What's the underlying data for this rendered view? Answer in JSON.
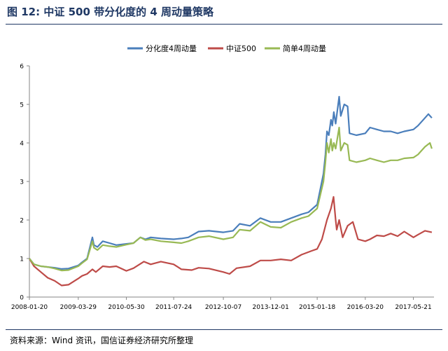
{
  "figure": {
    "label": "图 12:",
    "title": "中证 500 带分化度的 4 周动量策略",
    "source": "资料来源：Wind 资讯，国信证券经济研究所整理"
  },
  "chart_data": {
    "type": "line",
    "x_ticks": [
      "2008-01-20",
      "2009-03-29",
      "2010-05-30",
      "2011-07-24",
      "2012-10-07",
      "2013-12-01",
      "2015-01-18",
      "2016-03-20",
      "2017-05-21"
    ],
    "ylim": [
      0,
      6
    ],
    "y_ticks": [
      0,
      1,
      2,
      3,
      4,
      5,
      6
    ],
    "legend_position": "top",
    "grid": false,
    "series": [
      {
        "name": "分化度4周动量",
        "color": "#4a7ebb",
        "points": [
          [
            "2008-01-20",
            1.0
          ],
          [
            "2008-03-01",
            0.85
          ],
          [
            "2008-05-01",
            0.8
          ],
          [
            "2008-07-01",
            0.78
          ],
          [
            "2008-09-01",
            0.76
          ],
          [
            "2008-11-01",
            0.73
          ],
          [
            "2009-01-01",
            0.74
          ],
          [
            "2009-03-29",
            0.82
          ],
          [
            "2009-05-01",
            0.9
          ],
          [
            "2009-06-15",
            1.0
          ],
          [
            "2009-08-01",
            1.55
          ],
          [
            "2009-08-15",
            1.35
          ],
          [
            "2009-09-15",
            1.3
          ],
          [
            "2009-11-01",
            1.45
          ],
          [
            "2010-01-01",
            1.4
          ],
          [
            "2010-03-01",
            1.35
          ],
          [
            "2010-05-30",
            1.38
          ],
          [
            "2010-08-01",
            1.4
          ],
          [
            "2010-10-01",
            1.55
          ],
          [
            "2010-11-15",
            1.5
          ],
          [
            "2011-01-01",
            1.55
          ],
          [
            "2011-04-01",
            1.52
          ],
          [
            "2011-07-24",
            1.5
          ],
          [
            "2011-10-01",
            1.52
          ],
          [
            "2011-12-01",
            1.55
          ],
          [
            "2012-03-01",
            1.7
          ],
          [
            "2012-06-01",
            1.72
          ],
          [
            "2012-10-07",
            1.68
          ],
          [
            "2013-01-01",
            1.72
          ],
          [
            "2013-03-01",
            1.9
          ],
          [
            "2013-06-01",
            1.85
          ],
          [
            "2013-09-01",
            2.05
          ],
          [
            "2013-12-01",
            1.95
          ],
          [
            "2014-03-01",
            1.95
          ],
          [
            "2014-06-01",
            2.05
          ],
          [
            "2014-09-01",
            2.15
          ],
          [
            "2014-11-01",
            2.2
          ],
          [
            "2015-01-18",
            2.4
          ],
          [
            "2015-02-15",
            2.8
          ],
          [
            "2015-03-15",
            3.2
          ],
          [
            "2015-04-01",
            3.7
          ],
          [
            "2015-04-15",
            4.3
          ],
          [
            "2015-05-01",
            4.2
          ],
          [
            "2015-05-20",
            4.6
          ],
          [
            "2015-06-01",
            4.45
          ],
          [
            "2015-06-15",
            4.8
          ],
          [
            "2015-07-01",
            4.5
          ],
          [
            "2015-08-01",
            5.2
          ],
          [
            "2015-08-15",
            4.7
          ],
          [
            "2015-09-15",
            5.0
          ],
          [
            "2015-10-15",
            4.95
          ],
          [
            "2015-11-01",
            4.25
          ],
          [
            "2016-01-01",
            4.2
          ],
          [
            "2016-03-20",
            4.25
          ],
          [
            "2016-05-01",
            4.4
          ],
          [
            "2016-07-01",
            4.35
          ],
          [
            "2016-09-01",
            4.3
          ],
          [
            "2016-11-01",
            4.3
          ],
          [
            "2017-01-01",
            4.25
          ],
          [
            "2017-03-01",
            4.3
          ],
          [
            "2017-05-21",
            4.35
          ],
          [
            "2017-07-01",
            4.45
          ],
          [
            "2017-09-01",
            4.65
          ],
          [
            "2017-10-01",
            4.75
          ],
          [
            "2017-11-01",
            4.65
          ]
        ]
      },
      {
        "name": "中证500",
        "color": "#be4b48",
        "points": [
          [
            "2008-01-20",
            1.0
          ],
          [
            "2008-03-01",
            0.8
          ],
          [
            "2008-05-01",
            0.65
          ],
          [
            "2008-07-01",
            0.5
          ],
          [
            "2008-09-01",
            0.42
          ],
          [
            "2008-11-01",
            0.3
          ],
          [
            "2009-01-01",
            0.32
          ],
          [
            "2009-03-29",
            0.48
          ],
          [
            "2009-05-01",
            0.55
          ],
          [
            "2009-06-15",
            0.6
          ],
          [
            "2009-08-01",
            0.72
          ],
          [
            "2009-09-01",
            0.65
          ],
          [
            "2009-11-01",
            0.8
          ],
          [
            "2010-01-01",
            0.78
          ],
          [
            "2010-03-01",
            0.8
          ],
          [
            "2010-05-30",
            0.68
          ],
          [
            "2010-08-01",
            0.75
          ],
          [
            "2010-11-01",
            0.92
          ],
          [
            "2011-01-01",
            0.85
          ],
          [
            "2011-04-01",
            0.92
          ],
          [
            "2011-07-24",
            0.85
          ],
          [
            "2011-10-01",
            0.72
          ],
          [
            "2012-01-01",
            0.7
          ],
          [
            "2012-03-01",
            0.76
          ],
          [
            "2012-06-01",
            0.74
          ],
          [
            "2012-10-07",
            0.65
          ],
          [
            "2012-12-01",
            0.6
          ],
          [
            "2013-02-01",
            0.75
          ],
          [
            "2013-06-01",
            0.8
          ],
          [
            "2013-09-01",
            0.95
          ],
          [
            "2013-12-01",
            0.95
          ],
          [
            "2014-03-01",
            0.98
          ],
          [
            "2014-06-01",
            0.95
          ],
          [
            "2014-09-01",
            1.1
          ],
          [
            "2014-12-01",
            1.2
          ],
          [
            "2015-01-18",
            1.25
          ],
          [
            "2015-03-01",
            1.5
          ],
          [
            "2015-04-15",
            2.0
          ],
          [
            "2015-05-20",
            2.3
          ],
          [
            "2015-06-12",
            2.6
          ],
          [
            "2015-07-01",
            2.0
          ],
          [
            "2015-07-10",
            1.75
          ],
          [
            "2015-08-01",
            2.0
          ],
          [
            "2015-09-01",
            1.55
          ],
          [
            "2015-10-15",
            1.85
          ],
          [
            "2015-12-01",
            1.95
          ],
          [
            "2016-01-15",
            1.5
          ],
          [
            "2016-03-20",
            1.45
          ],
          [
            "2016-05-01",
            1.5
          ],
          [
            "2016-07-01",
            1.6
          ],
          [
            "2016-09-01",
            1.58
          ],
          [
            "2016-11-01",
            1.65
          ],
          [
            "2017-01-01",
            1.58
          ],
          [
            "2017-03-01",
            1.7
          ],
          [
            "2017-05-21",
            1.55
          ],
          [
            "2017-07-01",
            1.62
          ],
          [
            "2017-09-01",
            1.72
          ],
          [
            "2017-11-01",
            1.68
          ]
        ]
      },
      {
        "name": "简单4周动量",
        "color": "#98b954",
        "points": [
          [
            "2008-01-20",
            1.0
          ],
          [
            "2008-03-01",
            0.85
          ],
          [
            "2008-05-01",
            0.8
          ],
          [
            "2008-07-01",
            0.78
          ],
          [
            "2008-09-01",
            0.74
          ],
          [
            "2008-11-01",
            0.69
          ],
          [
            "2009-01-01",
            0.7
          ],
          [
            "2009-03-29",
            0.8
          ],
          [
            "2009-05-01",
            0.88
          ],
          [
            "2009-06-15",
            0.98
          ],
          [
            "2009-08-01",
            1.45
          ],
          [
            "2009-08-15",
            1.28
          ],
          [
            "2009-09-15",
            1.22
          ],
          [
            "2009-11-01",
            1.35
          ],
          [
            "2010-01-01",
            1.32
          ],
          [
            "2010-03-01",
            1.3
          ],
          [
            "2010-05-30",
            1.36
          ],
          [
            "2010-08-01",
            1.4
          ],
          [
            "2010-10-01",
            1.55
          ],
          [
            "2010-11-15",
            1.48
          ],
          [
            "2011-01-01",
            1.5
          ],
          [
            "2011-04-01",
            1.45
          ],
          [
            "2011-07-24",
            1.42
          ],
          [
            "2011-10-01",
            1.4
          ],
          [
            "2011-12-01",
            1.45
          ],
          [
            "2012-03-01",
            1.55
          ],
          [
            "2012-06-01",
            1.58
          ],
          [
            "2012-10-07",
            1.5
          ],
          [
            "2013-01-01",
            1.55
          ],
          [
            "2013-03-01",
            1.75
          ],
          [
            "2013-06-01",
            1.72
          ],
          [
            "2013-09-01",
            1.95
          ],
          [
            "2013-12-01",
            1.82
          ],
          [
            "2014-03-01",
            1.8
          ],
          [
            "2014-06-01",
            1.95
          ],
          [
            "2014-09-01",
            2.05
          ],
          [
            "2014-11-01",
            2.1
          ],
          [
            "2015-01-18",
            2.3
          ],
          [
            "2015-02-15",
            2.65
          ],
          [
            "2015-03-15",
            3.0
          ],
          [
            "2015-04-01",
            3.5
          ],
          [
            "2015-04-15",
            4.0
          ],
          [
            "2015-05-01",
            3.75
          ],
          [
            "2015-05-20",
            4.1
          ],
          [
            "2015-06-01",
            3.8
          ],
          [
            "2015-06-15",
            4.0
          ],
          [
            "2015-07-01",
            3.85
          ],
          [
            "2015-08-01",
            4.4
          ],
          [
            "2015-08-15",
            3.8
          ],
          [
            "2015-09-15",
            4.0
          ],
          [
            "2015-10-15",
            3.95
          ],
          [
            "2015-11-01",
            3.55
          ],
          [
            "2016-01-01",
            3.5
          ],
          [
            "2016-03-20",
            3.55
          ],
          [
            "2016-05-01",
            3.6
          ],
          [
            "2016-07-01",
            3.55
          ],
          [
            "2016-09-01",
            3.5
          ],
          [
            "2016-11-01",
            3.55
          ],
          [
            "2017-01-01",
            3.55
          ],
          [
            "2017-03-01",
            3.6
          ],
          [
            "2017-05-21",
            3.62
          ],
          [
            "2017-07-01",
            3.7
          ],
          [
            "2017-09-01",
            3.9
          ],
          [
            "2017-10-15",
            4.0
          ],
          [
            "2017-11-01",
            3.85
          ]
        ]
      }
    ]
  }
}
